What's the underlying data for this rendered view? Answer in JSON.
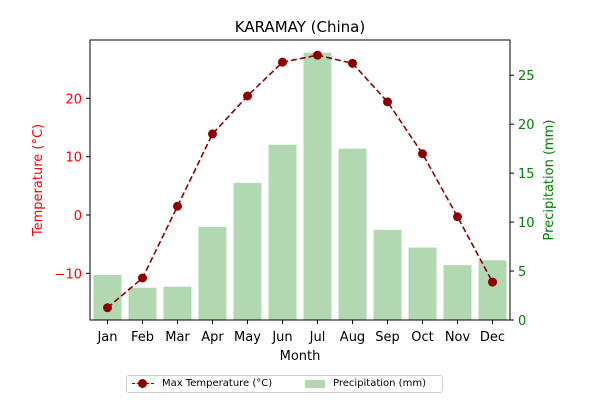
{
  "chart_data": {
    "type": "bar+line",
    "title": "KARAMAY (China)",
    "xlabel": "Month",
    "ylabel_left": "Temperature (°C)",
    "ylabel_right": "Precipitation (mm)",
    "categories": [
      "Jan",
      "Feb",
      "Mar",
      "Apr",
      "May",
      "Jun",
      "Jul",
      "Aug",
      "Sep",
      "Oct",
      "Nov",
      "Dec"
    ],
    "series": [
      {
        "name": "Max Temperature (°C)",
        "type": "line",
        "axis": "left",
        "color": "#8b0000",
        "values": [
          -15.9,
          -10.8,
          1.5,
          13.9,
          20.4,
          26.2,
          27.4,
          26.0,
          19.4,
          10.5,
          -0.3,
          -11.5
        ]
      },
      {
        "name": "Precipitation (mm)",
        "type": "bar",
        "axis": "right",
        "color": "#b2d8b2",
        "values": [
          4.6,
          3.3,
          3.4,
          9.5,
          14.0,
          17.9,
          27.3,
          17.5,
          9.2,
          7.4,
          5.6,
          6.1
        ]
      }
    ],
    "ylim_left": [
      -18,
      30
    ],
    "ylim_right": [
      0,
      28.6
    ],
    "yticks_left": [
      "−10",
      "0",
      "10",
      "20"
    ],
    "yticks_right": [
      "0",
      "5",
      "10",
      "15",
      "20",
      "25"
    ],
    "left_axis_color": "#ff0000",
    "right_axis_color": "#008000",
    "grid": false,
    "legend_position": "bottom-center"
  }
}
